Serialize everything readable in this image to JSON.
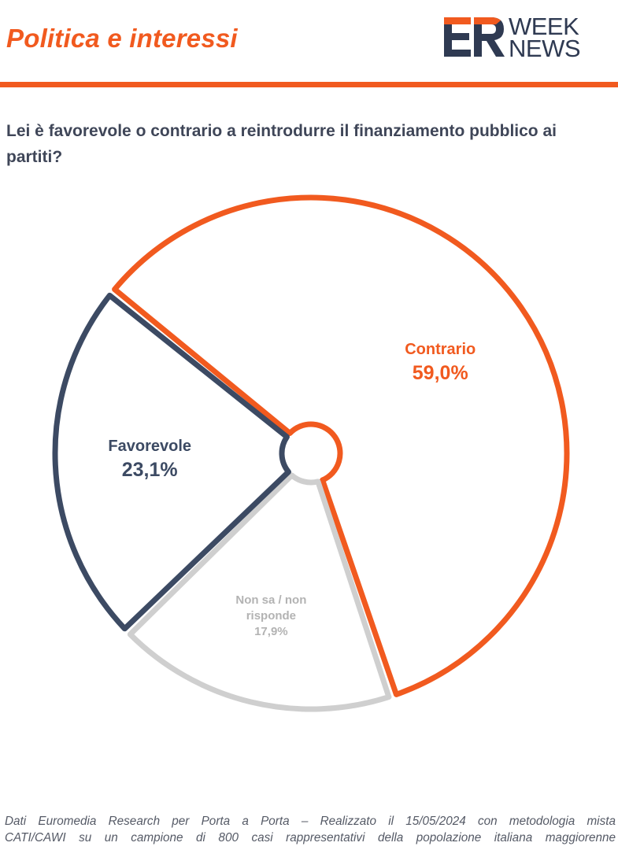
{
  "header": {
    "title": "Politica e interessi",
    "logo": {
      "mark": "ER",
      "word_top": "WEEK",
      "word_bottom": "NEWS",
      "colors": {
        "orange": "#f15a1f",
        "navy": "#2f3a52"
      }
    }
  },
  "question": "Lei è favorevole o contrario a reintrodurre il finanziamento pubblico ai partiti?",
  "chart_data": {
    "type": "pie",
    "title": "",
    "slices": [
      {
        "label": "Contrario",
        "value": 59.0,
        "display": "59,0%",
        "color": "#f15a1f",
        "text_color": "#f15a1f"
      },
      {
        "label": "Non sa / non risponde",
        "value": 17.9,
        "display": "17,9%",
        "color": "#cfcfcf",
        "text_color": "#b3b3b3"
      },
      {
        "label": "Favorevole",
        "value": 23.1,
        "display": "23,1%",
        "color": "#3c4a63",
        "text_color": "#3c4a63"
      }
    ],
    "legend": "none",
    "labels": "inside"
  },
  "footnote": {
    "line1": "Dati Euromedia Research per Porta a Porta – Realizzato il 15/05/2024 con metodologia mista",
    "line2": "CATI/CAWI su un campione di 800 casi rappresentativi della popolazione italiana maggiorenne"
  }
}
